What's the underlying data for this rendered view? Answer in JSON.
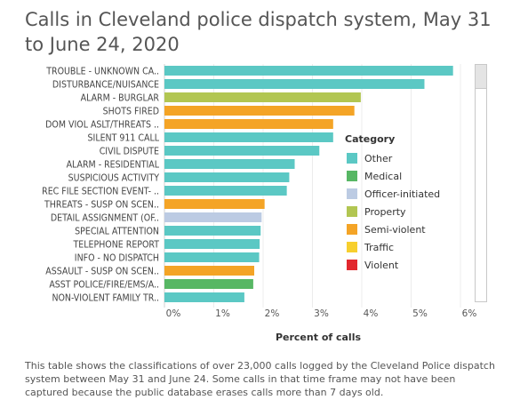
{
  "title": "Calls in Cleveland police dispatch system, May 31 to June 24, 2020",
  "caption": "This table shows the classifications of over 23,000 calls logged by the Cleveland Police dispatch system between May 31 and June 24. Some calls in that time frame may not have been captured because the public database erases calls more than 7 days old.",
  "legend": {
    "title": "Category",
    "items": [
      {
        "label": "Other",
        "color": "#5bc8c4"
      },
      {
        "label": "Medical",
        "color": "#57b764"
      },
      {
        "label": "Officer-initiated",
        "color": "#bccbe3"
      },
      {
        "label": "Property",
        "color": "#b2c652"
      },
      {
        "label": "Semi-violent",
        "color": "#f4a426"
      },
      {
        "label": "Traffic",
        "color": "#f7cf2e"
      },
      {
        "label": "Violent",
        "color": "#e2282e"
      }
    ]
  },
  "chart_data": {
    "type": "bar",
    "orientation": "horizontal",
    "xlabel": "Percent of calls",
    "ylabel": "",
    "xlim": [
      0,
      6
    ],
    "x_ticks": [
      "0%",
      "1%",
      "2%",
      "3%",
      "4%",
      "5%",
      "6%"
    ],
    "grid": true,
    "legend_position": "right",
    "categories": [
      "TROUBLE - UNKNOWN CA..",
      "DISTURBANCE/NUISANCE",
      "ALARM - BURGLAR",
      "SHOTS FIRED",
      "DOM VIOL ASLT/THREATS ..",
      "SILENT 911 CALL",
      "CIVIL DISPUTE",
      "ALARM - RESIDENTIAL",
      "SUSPICIOUS ACTIVITY",
      "REC FILE SECTION EVENT- ..",
      "THREATS - SUSP ON SCEN..",
      "DETAIL ASSIGNMENT (OF..",
      "SPECIAL ATTENTION",
      "TELEPHONE REPORT",
      "INFO - NO DISPATCH",
      "ASSAULT - SUSP ON SCEN..",
      "ASST POLICE/FIRE/EMS/A..",
      "NON-VIOLENT FAMILY TR.."
    ],
    "values": [
      5.85,
      5.27,
      3.98,
      3.85,
      3.42,
      3.42,
      3.14,
      2.64,
      2.53,
      2.48,
      2.03,
      1.97,
      1.95,
      1.93,
      1.92,
      1.82,
      1.8,
      1.62
    ],
    "bar_categories": [
      "Other",
      "Other",
      "Property",
      "Semi-violent",
      "Semi-violent",
      "Other",
      "Other",
      "Other",
      "Other",
      "Other",
      "Semi-violent",
      "Officer-initiated",
      "Other",
      "Other",
      "Other",
      "Semi-violent",
      "Medical",
      "Other"
    ]
  }
}
